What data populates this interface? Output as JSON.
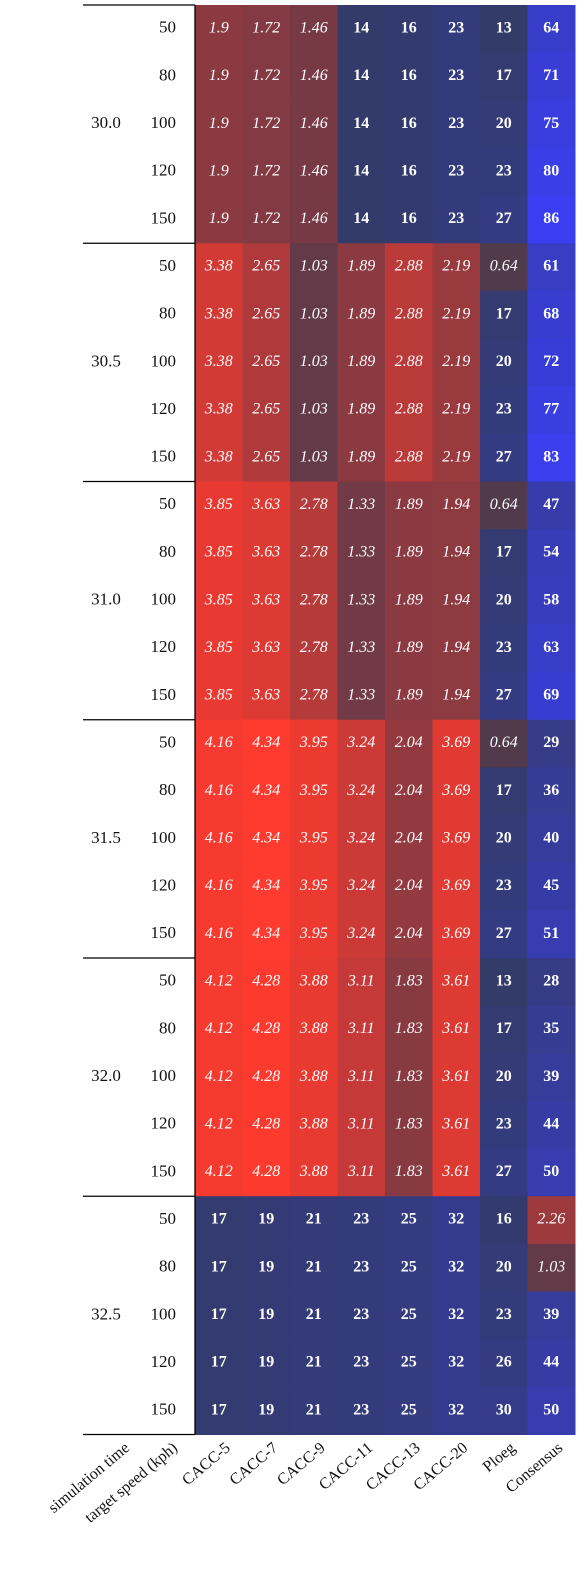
{
  "table": {
    "row_headers": [
      "simulation time",
      "target speed (kph)"
    ],
    "columns": [
      "CACC-5",
      "CACC-7",
      "CACC-9",
      "CACC-11",
      "CACC-13",
      "CACC-20",
      "Ploeg",
      "Consensus"
    ],
    "groups": [
      {
        "simulation_time": "30.0",
        "rows": [
          {
            "target_speed": 50,
            "values": [
              1.9,
              1.72,
              1.46,
              14,
              16,
              23,
              13,
              64
            ]
          },
          {
            "target_speed": 80,
            "values": [
              1.9,
              1.72,
              1.46,
              14,
              16,
              23,
              17,
              71
            ]
          },
          {
            "target_speed": 100,
            "values": [
              1.9,
              1.72,
              1.46,
              14,
              16,
              23,
              20,
              75
            ]
          },
          {
            "target_speed": 120,
            "values": [
              1.9,
              1.72,
              1.46,
              14,
              16,
              23,
              23,
              80
            ]
          },
          {
            "target_speed": 150,
            "values": [
              1.9,
              1.72,
              1.46,
              14,
              16,
              23,
              27,
              86
            ]
          }
        ]
      },
      {
        "simulation_time": "30.5",
        "rows": [
          {
            "target_speed": 50,
            "values": [
              3.38,
              2.65,
              1.03,
              1.89,
              2.88,
              2.19,
              0.64,
              61
            ]
          },
          {
            "target_speed": 80,
            "values": [
              3.38,
              2.65,
              1.03,
              1.89,
              2.88,
              2.19,
              17,
              68
            ]
          },
          {
            "target_speed": 100,
            "values": [
              3.38,
              2.65,
              1.03,
              1.89,
              2.88,
              2.19,
              20,
              72
            ]
          },
          {
            "target_speed": 120,
            "values": [
              3.38,
              2.65,
              1.03,
              1.89,
              2.88,
              2.19,
              23,
              77
            ]
          },
          {
            "target_speed": 150,
            "values": [
              3.38,
              2.65,
              1.03,
              1.89,
              2.88,
              2.19,
              27,
              83
            ]
          }
        ]
      },
      {
        "simulation_time": "31.0",
        "rows": [
          {
            "target_speed": 50,
            "values": [
              3.85,
              3.63,
              2.78,
              1.33,
              1.89,
              1.94,
              0.64,
              47
            ]
          },
          {
            "target_speed": 80,
            "values": [
              3.85,
              3.63,
              2.78,
              1.33,
              1.89,
              1.94,
              17,
              54
            ]
          },
          {
            "target_speed": 100,
            "values": [
              3.85,
              3.63,
              2.78,
              1.33,
              1.89,
              1.94,
              20,
              58
            ]
          },
          {
            "target_speed": 120,
            "values": [
              3.85,
              3.63,
              2.78,
              1.33,
              1.89,
              1.94,
              23,
              63
            ]
          },
          {
            "target_speed": 150,
            "values": [
              3.85,
              3.63,
              2.78,
              1.33,
              1.89,
              1.94,
              27,
              69
            ]
          }
        ]
      },
      {
        "simulation_time": "31.5",
        "rows": [
          {
            "target_speed": 50,
            "values": [
              4.16,
              4.34,
              3.95,
              3.24,
              2.04,
              3.69,
              0.64,
              29
            ]
          },
          {
            "target_speed": 80,
            "values": [
              4.16,
              4.34,
              3.95,
              3.24,
              2.04,
              3.69,
              17,
              36
            ]
          },
          {
            "target_speed": 100,
            "values": [
              4.16,
              4.34,
              3.95,
              3.24,
              2.04,
              3.69,
              20,
              40
            ]
          },
          {
            "target_speed": 120,
            "values": [
              4.16,
              4.34,
              3.95,
              3.24,
              2.04,
              3.69,
              23,
              45
            ]
          },
          {
            "target_speed": 150,
            "values": [
              4.16,
              4.34,
              3.95,
              3.24,
              2.04,
              3.69,
              27,
              51
            ]
          }
        ]
      },
      {
        "simulation_time": "32.0",
        "rows": [
          {
            "target_speed": 50,
            "values": [
              4.12,
              4.28,
              3.88,
              3.11,
              1.83,
              3.61,
              13,
              28
            ]
          },
          {
            "target_speed": 80,
            "values": [
              4.12,
              4.28,
              3.88,
              3.11,
              1.83,
              3.61,
              17,
              35
            ]
          },
          {
            "target_speed": 100,
            "values": [
              4.12,
              4.28,
              3.88,
              3.11,
              1.83,
              3.61,
              20,
              39
            ]
          },
          {
            "target_speed": 120,
            "values": [
              4.12,
              4.28,
              3.88,
              3.11,
              1.83,
              3.61,
              23,
              44
            ]
          },
          {
            "target_speed": 150,
            "values": [
              4.12,
              4.28,
              3.88,
              3.11,
              1.83,
              3.61,
              27,
              50
            ]
          }
        ]
      },
      {
        "simulation_time": "32.5",
        "rows": [
          {
            "target_speed": 50,
            "values": [
              17,
              19,
              21,
              23,
              25,
              32,
              16,
              2.26
            ]
          },
          {
            "target_speed": 80,
            "values": [
              17,
              19,
              21,
              23,
              25,
              32,
              20,
              1.03
            ]
          },
          {
            "target_speed": 100,
            "values": [
              17,
              19,
              21,
              23,
              25,
              32,
              23,
              39
            ]
          },
          {
            "target_speed": 120,
            "values": [
              17,
              19,
              21,
              23,
              25,
              32,
              26,
              44
            ]
          },
          {
            "target_speed": 150,
            "values": [
              17,
              19,
              21,
              23,
              25,
              32,
              30,
              50
            ]
          }
        ]
      }
    ]
  }
}
